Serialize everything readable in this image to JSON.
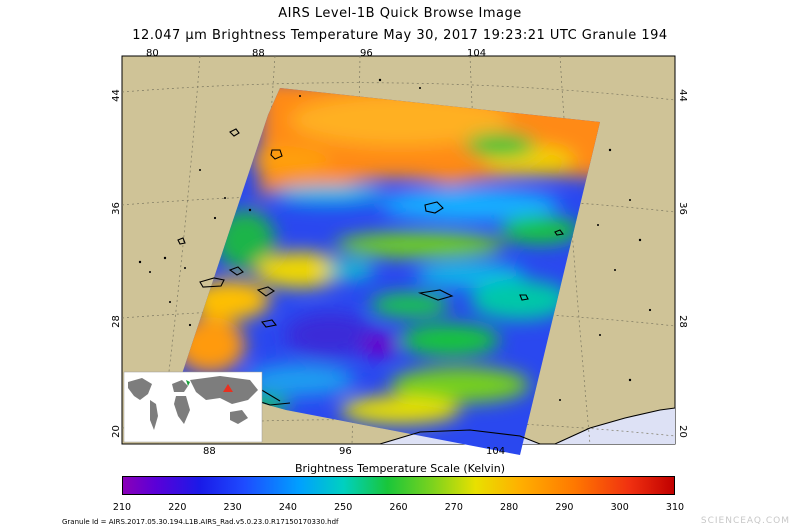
{
  "header": {
    "title": "AIRS Level-1B Quick Browse Image",
    "subtitle": "12.047 μm Brightness Temperature    May 30, 2017 19:23:21 UTC   Granule 194"
  },
  "map": {
    "top_lon_ticks": [
      "80",
      "88",
      "96",
      "104"
    ],
    "bottom_lon_ticks": [
      "88",
      "96",
      "104"
    ],
    "left_lat_ticks": [
      "44",
      "36",
      "28",
      "20"
    ],
    "right_lat_ticks": [
      "44",
      "36",
      "28",
      "20"
    ],
    "land_color": "#cfc397",
    "ocean_color": "#dde1f5",
    "inset_icon": "world-locator-map-icon"
  },
  "scale": {
    "title": "Brightness Temperature Scale (Kelvin)",
    "labels": [
      "210",
      "220",
      "230",
      "240",
      "250",
      "260",
      "270",
      "280",
      "290",
      "300",
      "310"
    ],
    "min": 210,
    "max": 310
  },
  "footer": {
    "granule_id": "Granule Id = AIRS.2017.05.30.194.L1B.AIRS_Rad.v5.0.23.0.R17150170330.hdf",
    "watermark": "SCIENCEAQ.COM"
  }
}
